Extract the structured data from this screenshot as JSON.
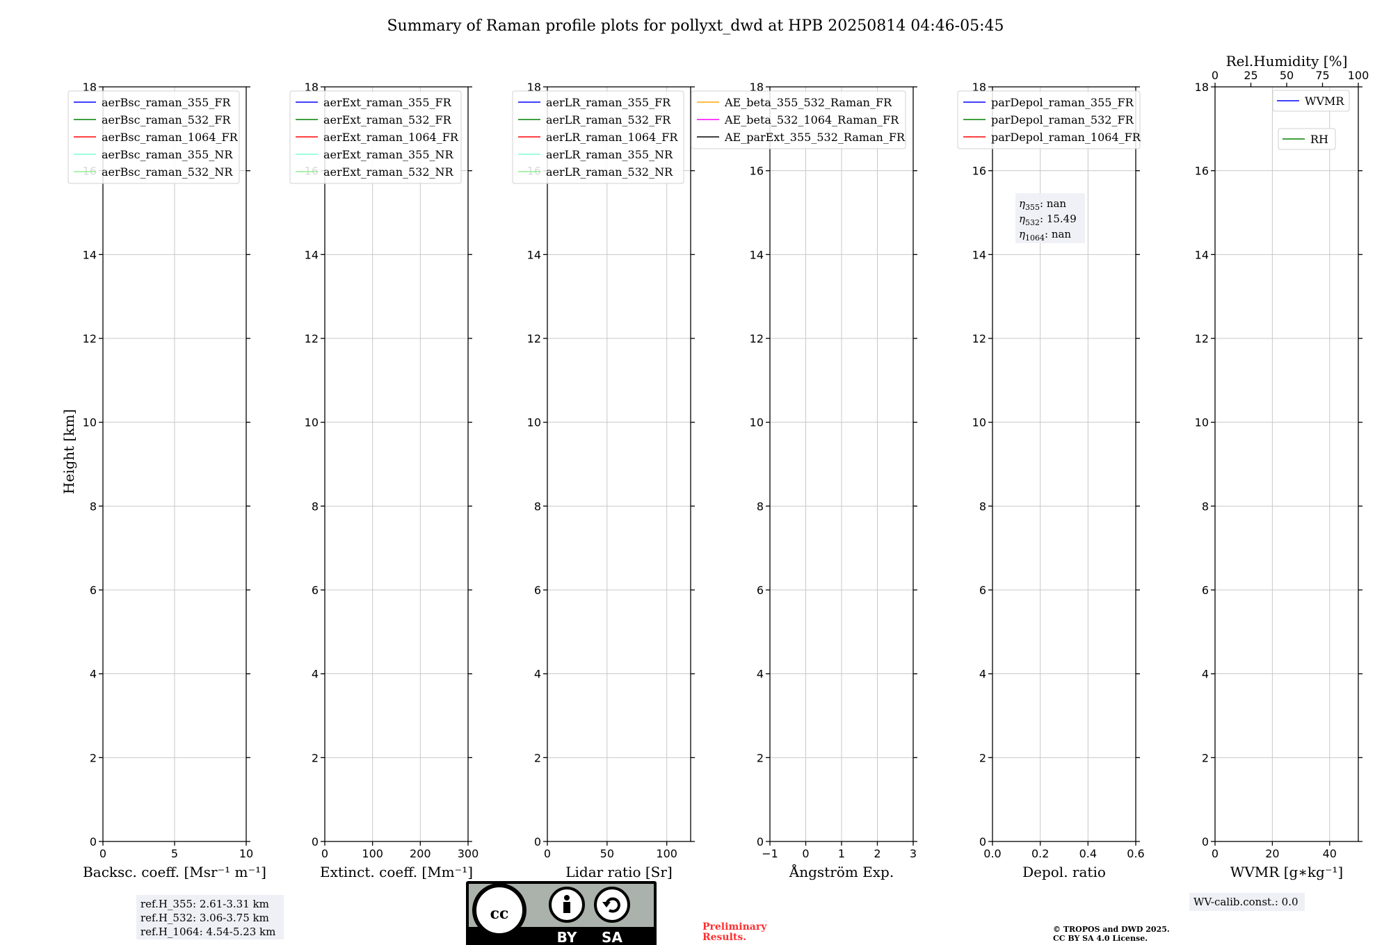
{
  "title": "Summary of Raman profile plots for pollyxt_dwd at HPB 20250814 04:46-05:45",
  "ylabel": "Height [km]",
  "colors": {
    "blue": "#0000ff",
    "green": "#008000",
    "red": "#ff0000",
    "cyan": "#7fffd4",
    "lightgreen": "#90ee90",
    "orange": "#ffa500",
    "magenta": "#ff00ff",
    "black": "#000000"
  },
  "chart_data": [
    {
      "type": "line",
      "xlabel": "Backsc. coeff. [Msr$^{-1}$ m$^{-1}$]",
      "xlabel_display": "Backsc. coeff. [Msr⁻¹ m⁻¹]",
      "xlim": [
        0,
        10
      ],
      "ylim": [
        0,
        18
      ],
      "xticks": [
        "0",
        "5",
        "10"
      ],
      "yticks": [
        "0",
        "2",
        "4",
        "6",
        "8",
        "10",
        "12",
        "14",
        "16",
        "18"
      ],
      "grid": true,
      "legend_location": "upper-left",
      "series": [
        {
          "name": "aerBsc_raman_355_FR",
          "color": "#0000ff"
        },
        {
          "name": "aerBsc_raman_532_FR",
          "color": "#008000"
        },
        {
          "name": "aerBsc_raman_1064_FR",
          "color": "#ff0000"
        },
        {
          "name": "aerBsc_raman_355_NR",
          "color": "#7fffd4"
        },
        {
          "name": "aerBsc_raman_532_NR",
          "color": "#90ee90"
        }
      ]
    },
    {
      "type": "line",
      "xlabel_display": "Extinct. coeff. [Mm⁻¹]",
      "xlim": [
        0,
        300
      ],
      "ylim": [
        0,
        18
      ],
      "xticks": [
        "0",
        "100",
        "200",
        "300"
      ],
      "yticks": [
        "0",
        "2",
        "4",
        "6",
        "8",
        "10",
        "12",
        "14",
        "16",
        "18"
      ],
      "grid": true,
      "legend_location": "upper-left",
      "series": [
        {
          "name": "aerExt_raman_355_FR",
          "color": "#0000ff"
        },
        {
          "name": "aerExt_raman_532_FR",
          "color": "#008000"
        },
        {
          "name": "aerExt_raman_1064_FR",
          "color": "#ff0000"
        },
        {
          "name": "aerExt_raman_355_NR",
          "color": "#7fffd4"
        },
        {
          "name": "aerExt_raman_532_NR",
          "color": "#90ee90"
        }
      ]
    },
    {
      "type": "line",
      "xlabel_display": "Lidar ratio [Sr]",
      "xlim": [
        0,
        120
      ],
      "ylim": [
        0,
        18
      ],
      "xticks": [
        "0",
        "50",
        "100"
      ],
      "yticks": [
        "0",
        "2",
        "4",
        "6",
        "8",
        "10",
        "12",
        "14",
        "16",
        "18"
      ],
      "grid": true,
      "legend_location": "upper-left",
      "series": [
        {
          "name": "aerLR_raman_355_FR",
          "color": "#0000ff"
        },
        {
          "name": "aerLR_raman_532_FR",
          "color": "#008000"
        },
        {
          "name": "aerLR_raman_1064_FR",
          "color": "#ff0000"
        },
        {
          "name": "aerLR_raman_355_NR",
          "color": "#7fffd4"
        },
        {
          "name": "aerLR_raman_532_NR",
          "color": "#90ee90"
        }
      ]
    },
    {
      "type": "line",
      "xlabel_display": "Ångström Exp.",
      "xlim": [
        -1,
        3
      ],
      "ylim": [
        0,
        18
      ],
      "xticks": [
        "−1",
        "0",
        "1",
        "2",
        "3"
      ],
      "yticks": [
        "0",
        "2",
        "4",
        "6",
        "8",
        "10",
        "12",
        "14",
        "16",
        "18"
      ],
      "grid": true,
      "legend_location": "upper-left",
      "series": [
        {
          "name": "AE_beta_355_532_Raman_FR",
          "color": "#ffa500"
        },
        {
          "name": "AE_beta_532_1064_Raman_FR",
          "color": "#ff00ff"
        },
        {
          "name": "AE_parExt_355_532_Raman_FR",
          "color": "#000000"
        }
      ]
    },
    {
      "type": "line",
      "xlabel_display": "Depol. ratio",
      "xlim": [
        0,
        0.6
      ],
      "ylim": [
        0,
        18
      ],
      "xticks": [
        "0.0",
        "0.2",
        "0.4",
        "0.6"
      ],
      "yticks": [
        "0",
        "2",
        "4",
        "6",
        "8",
        "10",
        "12",
        "14",
        "16",
        "18"
      ],
      "grid": true,
      "legend_location": "upper-left",
      "series": [
        {
          "name": "parDepol_raman_355_FR",
          "color": "#0000ff"
        },
        {
          "name": "parDepol_raman_532_FR",
          "color": "#008000"
        },
        {
          "name": "parDepol_raman_1064_FR",
          "color": "#ff0000"
        }
      ],
      "annotation": {
        "eta355": "nan",
        "eta532": "15.49",
        "eta1064": "nan"
      }
    },
    {
      "type": "line",
      "xlabel_display": "WVMR [g∗kg⁻¹]",
      "xlim": [
        0,
        50
      ],
      "ylim": [
        0,
        18
      ],
      "xticks": [
        "0",
        "20",
        "40"
      ],
      "yticks": [
        "0",
        "2",
        "4",
        "6",
        "8",
        "10",
        "12",
        "14",
        "16",
        "18"
      ],
      "grid": true,
      "top_axis": {
        "label": "Rel.Humidity [%]",
        "xlim": [
          0,
          100
        ],
        "xticks": [
          "0",
          "25",
          "50",
          "75",
          "100"
        ]
      },
      "series": [
        {
          "name": "WVMR",
          "color": "#0000ff"
        },
        {
          "name": "RH",
          "color": "#008000"
        }
      ]
    }
  ],
  "info_boxes": {
    "ref_h_355": "ref.H_355: 2.61-3.31 km",
    "ref_h_532": "ref.H_532: 3.06-3.75 km",
    "ref_h_1064": "ref.H_1064: 4.54-5.23 km",
    "wv_calib": "WV-calib.const.: 0.0"
  },
  "license": {
    "badge_by": "BY",
    "badge_sa": "SA",
    "badge_cc": "cc",
    "preliminary_1": "Preliminary",
    "preliminary_2": "Results.",
    "copyright_1": "© TROPOS and DWD 2025.",
    "copyright_2": "CC BY SA 4.0 License."
  }
}
